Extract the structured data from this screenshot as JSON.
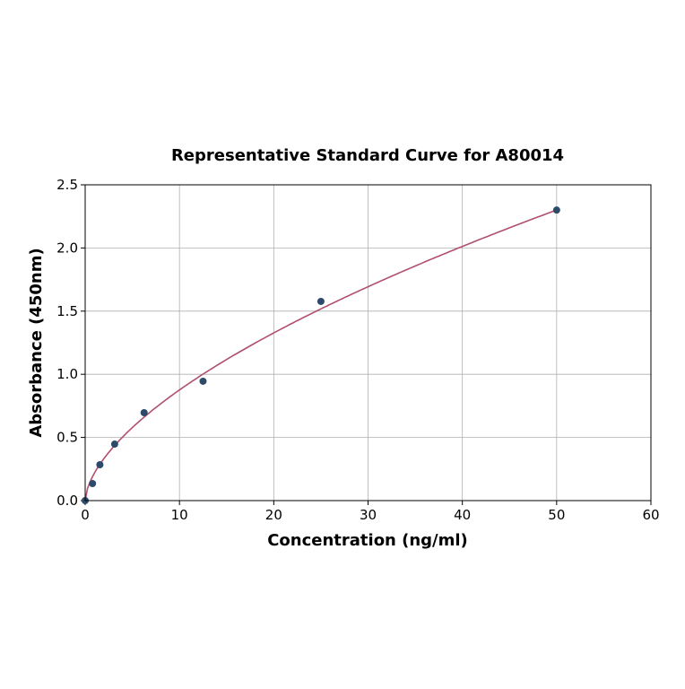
{
  "chart_data": {
    "type": "scatter",
    "title": "Representative Standard Curve for A80014",
    "xlabel": "Concentration (ng/ml)",
    "ylabel": "Absorbance (450nm)",
    "xlim": [
      0,
      60
    ],
    "ylim": [
      0,
      2.5
    ],
    "xticks": [
      0,
      10,
      20,
      30,
      40,
      50,
      60
    ],
    "yticks": [
      0.0,
      0.5,
      1.0,
      1.5,
      2.0,
      2.5
    ],
    "xtick_labels": [
      "0",
      "10",
      "20",
      "30",
      "40",
      "50",
      "60"
    ],
    "ytick_labels": [
      "0.0",
      "0.5",
      "1.0",
      "1.5",
      "2.0",
      "2.5"
    ],
    "grid": true,
    "points": {
      "x": [
        0,
        0.78,
        1.56,
        3.125,
        6.25,
        12.5,
        25,
        50
      ],
      "y": [
        0.0,
        0.135,
        0.284,
        0.447,
        0.696,
        0.945,
        1.577,
        2.3
      ]
    },
    "fit_curve": {
      "model": "power",
      "a": 0.22,
      "b": 0.6,
      "x_range": [
        0,
        50
      ]
    },
    "colors": {
      "points": "#2e4a6b",
      "curve": "#b0506e",
      "grid": "#b0b0b0"
    }
  }
}
